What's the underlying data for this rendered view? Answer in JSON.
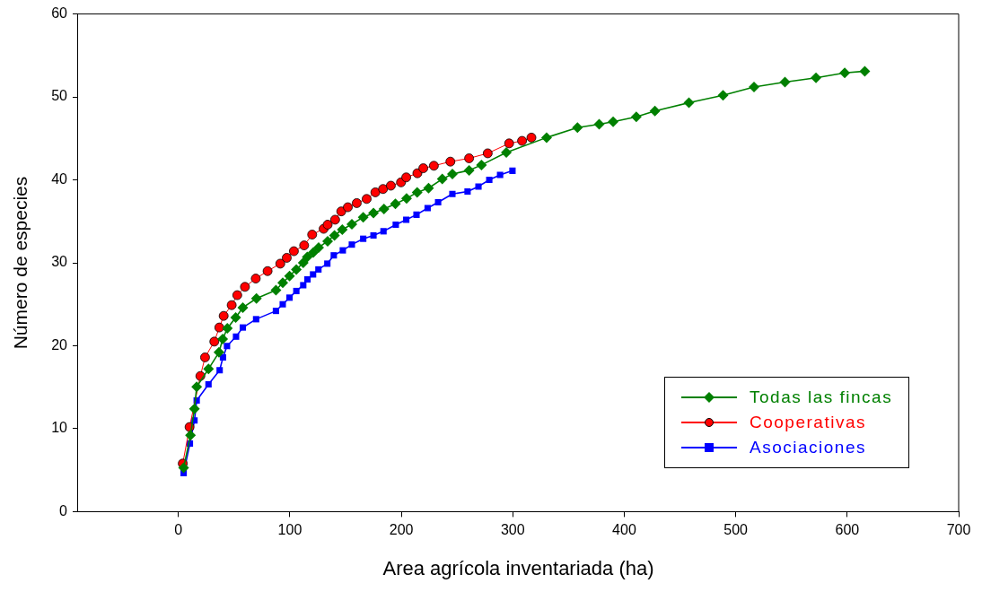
{
  "chart_data": {
    "type": "line",
    "xlabel": "Area agrícola inventariada (ha)",
    "ylabel": "Número de especies",
    "xlim": [
      -90,
      700
    ],
    "xticks": [
      0,
      100,
      200,
      300,
      400,
      500,
      600,
      700
    ],
    "ylim": [
      0,
      60
    ],
    "yticks": [
      0,
      10,
      20,
      30,
      40,
      50,
      60
    ],
    "grid": false,
    "legend": "bottom right",
    "line_style": "solid",
    "series": [
      {
        "name": "Todas las fincas",
        "color": "#008000",
        "marker": "diamond",
        "x": [
          4.7,
          10.8,
          14.4,
          16.4,
          27,
          36.4,
          39.7,
          43.9,
          51.4,
          57.8,
          70,
          87.5,
          93.6,
          99.7,
          105.8,
          112,
          115.6,
          121,
          125.8,
          133.9,
          140,
          147,
          155.6,
          165.8,
          175,
          184.4,
          194.7,
          204.7,
          214.2,
          224.4,
          236.7,
          245.8,
          260.8,
          271.9,
          294.2,
          330.3,
          358,
          377.5,
          390,
          410.8,
          427.5,
          458,
          488.6,
          516.4,
          544.2,
          572,
          597.8,
          615.8
        ],
        "values": [
          5.3,
          9.2,
          12.4,
          15.05,
          17.2,
          19.2,
          20.8,
          22.1,
          23.4,
          24.6,
          25.7,
          26.7,
          27.6,
          28.4,
          29.2,
          30,
          30.7,
          31.25,
          31.85,
          32.6,
          33.3,
          34,
          34.65,
          35.5,
          36,
          36.5,
          37.1,
          37.75,
          38.5,
          39,
          40.1,
          40.7,
          41.15,
          41.8,
          43.3,
          45.1,
          46.3,
          46.7,
          47,
          47.6,
          48.3,
          49.3,
          50.2,
          51.2,
          51.8,
          52.3,
          52.9,
          53.1
        ]
      },
      {
        "name": "Cooperativas",
        "color": "#ff0000",
        "marker": "circle",
        "x": [
          3.9,
          10,
          19.7,
          23.9,
          32.2,
          36.7,
          40.6,
          47.8,
          52.8,
          59.7,
          69.4,
          80,
          91.4,
          97.2,
          103.6,
          112.8,
          120,
          130.3,
          133.9,
          140.6,
          146.1,
          152,
          160,
          168.9,
          176.7,
          183.6,
          190.6,
          199.7,
          204.4,
          214.4,
          219.7,
          229.2,
          244,
          260.8,
          277.5,
          296.7,
          308.3,
          316.7
        ],
        "values": [
          5.8,
          10.2,
          16.35,
          18.6,
          20.5,
          22.2,
          23.6,
          24.9,
          26.1,
          27.1,
          28.1,
          29,
          29.9,
          30.6,
          31.4,
          32.1,
          33.4,
          34.1,
          34.6,
          35.2,
          36.2,
          36.7,
          37.2,
          37.7,
          38.5,
          38.9,
          39.3,
          39.7,
          40.3,
          40.8,
          41.4,
          41.7,
          42.2,
          42.6,
          43.2,
          44.4,
          44.7,
          45.1
        ]
      },
      {
        "name": "Asociaciones",
        "color": "#0000ff",
        "marker": "square",
        "x": [
          4.7,
          10.3,
          14.4,
          16.4,
          27,
          37,
          40,
          43.6,
          51.7,
          57.8,
          69.7,
          87.5,
          93.6,
          99.7,
          105.8,
          112,
          115.8,
          120.8,
          125.6,
          133.6,
          139.4,
          147.5,
          155.6,
          165.8,
          175,
          184,
          195,
          204.4,
          213.6,
          223.6,
          233,
          245.8,
          259.4,
          269.2,
          278.9,
          288.6,
          299.7
        ],
        "values": [
          4.65,
          8.2,
          11,
          13.4,
          15.35,
          17.05,
          18.6,
          19.96,
          21.1,
          22.2,
          23.2,
          24.2,
          25,
          25.8,
          26.6,
          27.3,
          28,
          28.6,
          29.2,
          29.9,
          30.9,
          31.5,
          32.2,
          32.9,
          33.3,
          33.8,
          34.6,
          35.2,
          35.8,
          36.6,
          37.3,
          38.3,
          38.6,
          39.2,
          40,
          40.6,
          41.1
        ]
      }
    ]
  }
}
